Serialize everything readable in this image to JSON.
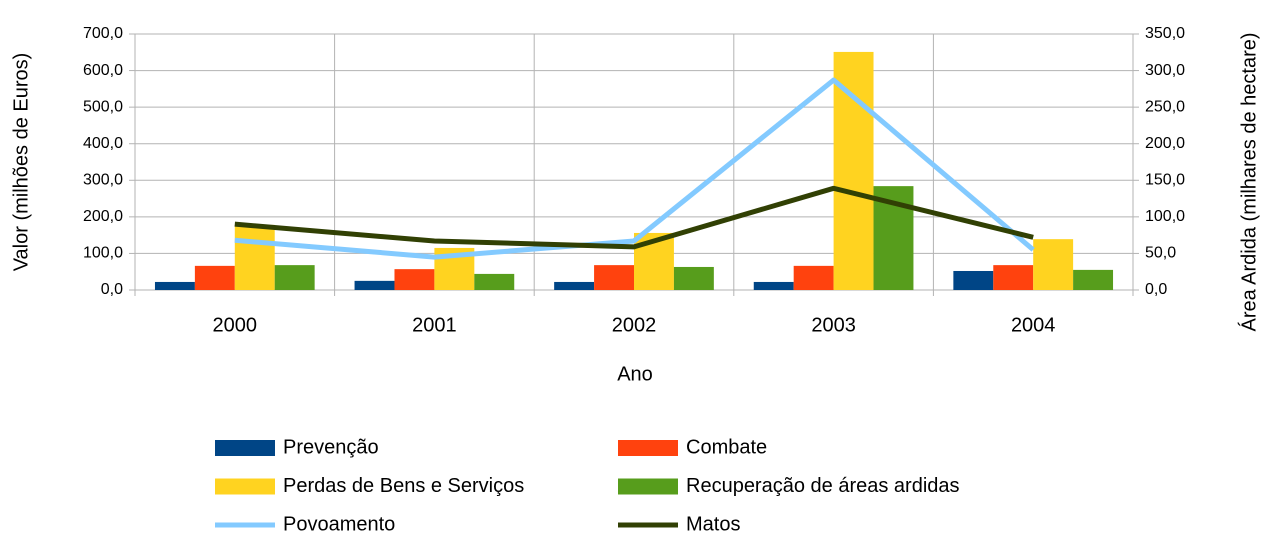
{
  "chart_data": {
    "type": "combo",
    "x_label": "Ano",
    "y_label": "Valor (milhões de Euros)",
    "y2_label": "Área Ardida (milhares de hectare)",
    "categories": [
      "2000",
      "2001",
      "2002",
      "2003",
      "2004"
    ],
    "series": [
      {
        "name": "Prevenção",
        "type": "bar",
        "color": "#004586",
        "values": [
          22,
          25,
          22,
          22,
          52
        ]
      },
      {
        "name": "Combate",
        "type": "bar",
        "color": "#ff420e",
        "values": [
          66,
          57,
          68,
          66,
          68
        ]
      },
      {
        "name": "Perdas de Bens e Serviços",
        "type": "bar",
        "color": "#ffd320",
        "values": [
          178,
          115,
          156,
          651,
          139
        ]
      },
      {
        "name": "Recuperação de áreas ardidas",
        "type": "bar",
        "color": "#579d1c",
        "values": [
          68,
          44,
          63,
          284,
          55
        ]
      },
      {
        "name": "Povoamento",
        "type": "line",
        "axis": "y2",
        "color": "#83caff",
        "values": [
          68,
          45,
          67,
          287,
          55
        ]
      },
      {
        "name": "Matos",
        "type": "line",
        "axis": "y2",
        "color": "#314004",
        "values": [
          90,
          67,
          59,
          139,
          72
        ]
      }
    ],
    "ylim": [
      0,
      700
    ],
    "yticks": [
      {
        "value": 0,
        "label": "0,0"
      },
      {
        "value": 100,
        "label": "100,0"
      },
      {
        "value": 200,
        "label": "200,0"
      },
      {
        "value": 300,
        "label": "300,0"
      },
      {
        "value": 400,
        "label": "400,0"
      },
      {
        "value": 500,
        "label": "500,0"
      },
      {
        "value": 600,
        "label": "600,0"
      },
      {
        "value": 700,
        "label": "700,0"
      }
    ],
    "y2lim": [
      0,
      350
    ],
    "y2ticks": [
      {
        "value": 0,
        "label": "0,0"
      },
      {
        "value": 50,
        "label": "50,0"
      },
      {
        "value": 100,
        "label": "100,0"
      },
      {
        "value": 150,
        "label": "150,0"
      },
      {
        "value": 200,
        "label": "200,0"
      },
      {
        "value": 250,
        "label": "250,0"
      },
      {
        "value": 300,
        "label": "300,0"
      },
      {
        "value": 350,
        "label": "350,0"
      }
    ],
    "grid": true,
    "legend": "bottom"
  }
}
